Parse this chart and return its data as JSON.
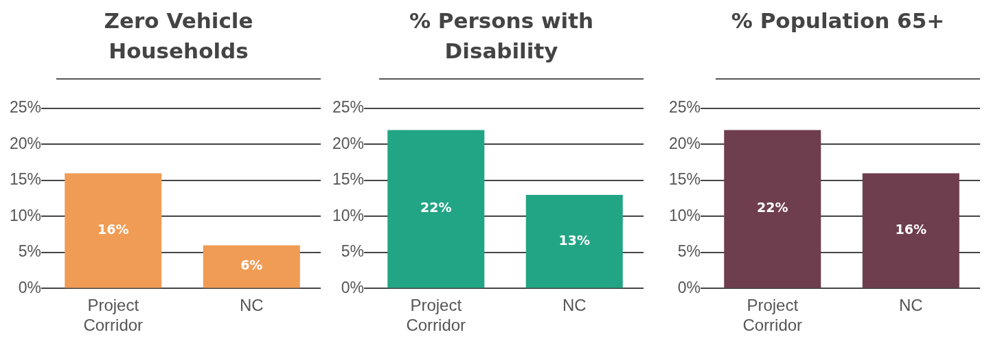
{
  "chart_data": [
    {
      "type": "bar",
      "title": "Zero Vehicle Households",
      "categories": [
        "Project Corridor",
        "NC"
      ],
      "values": [
        16,
        6
      ],
      "value_labels": [
        "16%",
        "6%"
      ],
      "color": "#f09c55",
      "ylim": [
        0,
        25
      ],
      "yticks": [
        {
          "value": 0,
          "label": "0%"
        },
        {
          "value": 5,
          "label": "5%"
        },
        {
          "value": 10,
          "label": "10%"
        },
        {
          "value": 15,
          "label": "15%"
        },
        {
          "value": 20,
          "label": "20%"
        },
        {
          "value": 25,
          "label": "25%"
        }
      ],
      "grid": "y"
    },
    {
      "type": "bar",
      "title": "% Persons with Disability",
      "categories": [
        "Project Corridor",
        "NC"
      ],
      "values": [
        22,
        13
      ],
      "value_labels": [
        "22%",
        "13%"
      ],
      "color": "#22a584",
      "ylim": [
        0,
        25
      ],
      "yticks": [
        {
          "value": 0,
          "label": "0%"
        },
        {
          "value": 5,
          "label": "5%"
        },
        {
          "value": 10,
          "label": "10%"
        },
        {
          "value": 15,
          "label": "15%"
        },
        {
          "value": 20,
          "label": "20%"
        },
        {
          "value": 25,
          "label": "25%"
        }
      ],
      "grid": "y"
    },
    {
      "type": "bar",
      "title": "% Population 65+",
      "categories": [
        "Project Corridor",
        "NC"
      ],
      "values": [
        22,
        16
      ],
      "value_labels": [
        "22%",
        "16%"
      ],
      "color": "#6e3d4e",
      "ylim": [
        0,
        25
      ],
      "yticks": [
        {
          "value": 0,
          "label": "0%"
        },
        {
          "value": 5,
          "label": "5%"
        },
        {
          "value": 10,
          "label": "10%"
        },
        {
          "value": 15,
          "label": "15%"
        },
        {
          "value": 20,
          "label": "20%"
        },
        {
          "value": 25,
          "label": "25%"
        }
      ],
      "grid": "y"
    }
  ]
}
